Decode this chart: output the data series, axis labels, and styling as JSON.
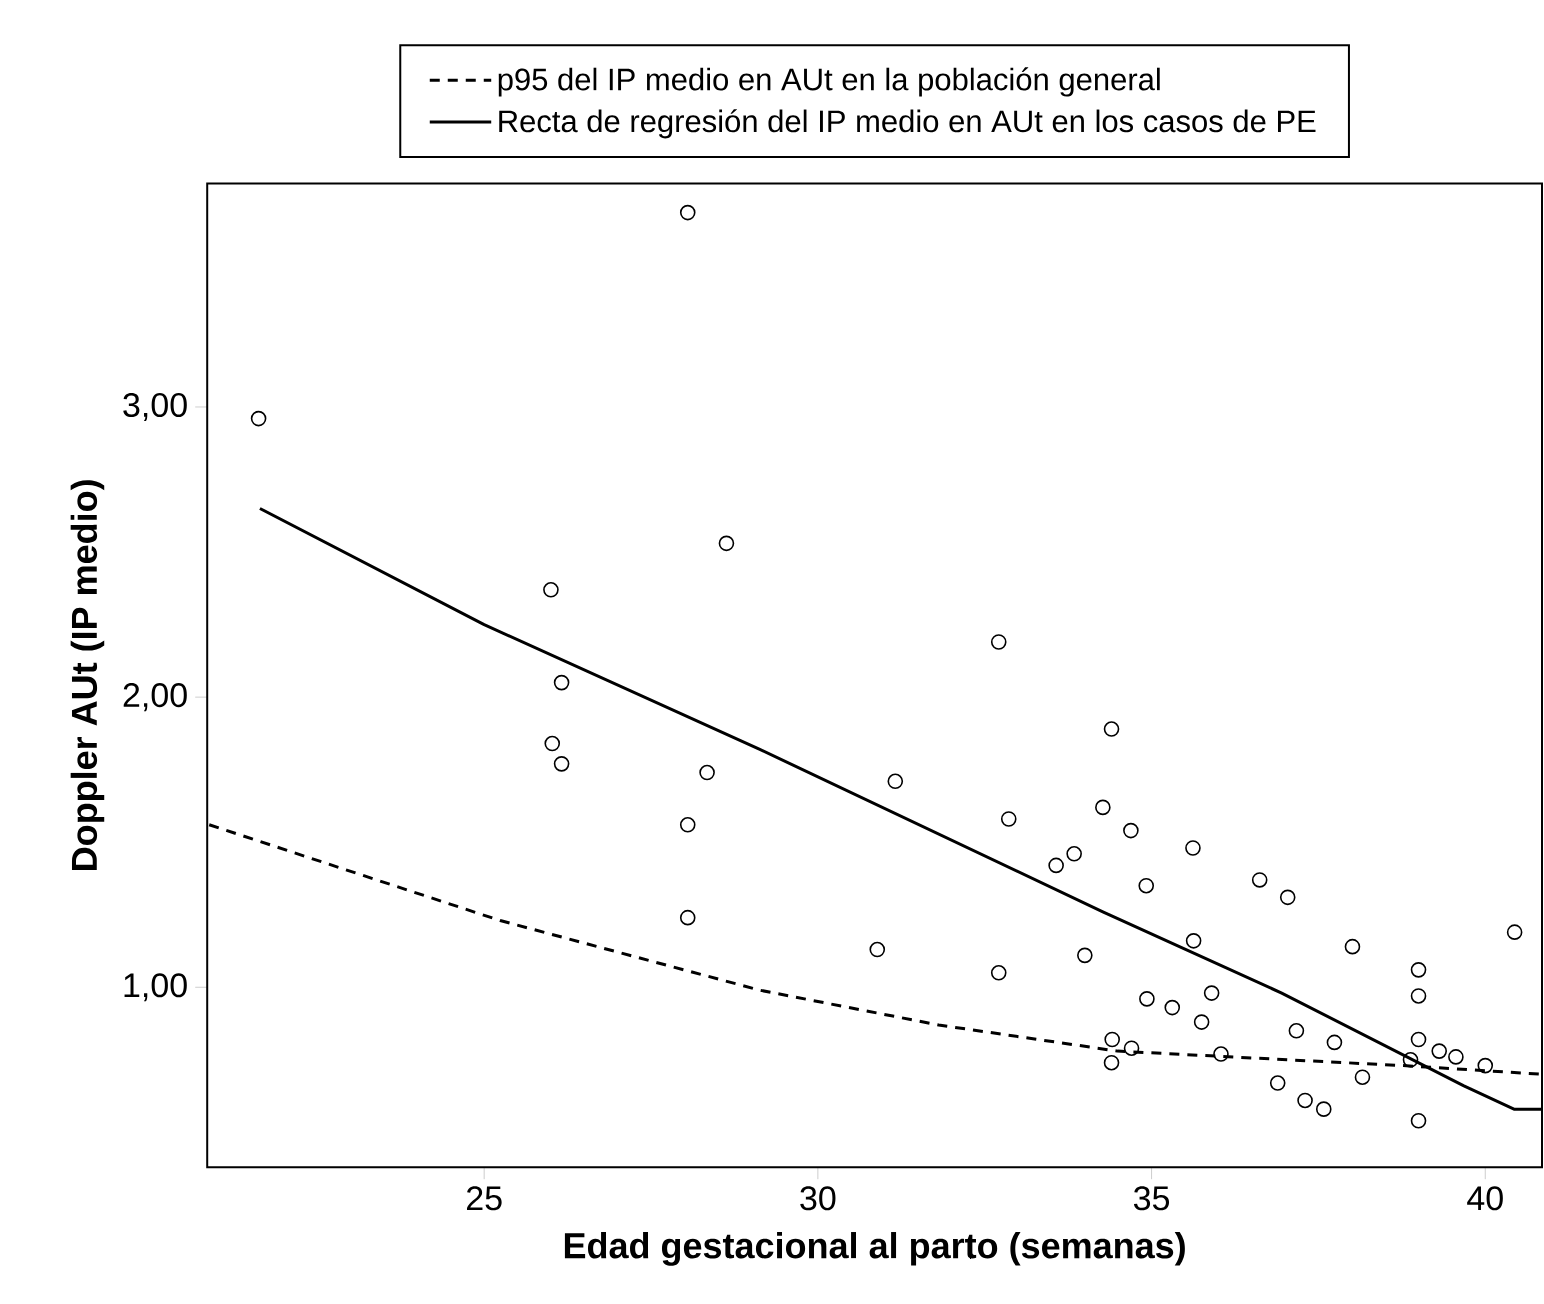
{
  "chart_data": {
    "type": "scatter",
    "xlabel": "Edad gestacional al parto (semanas)",
    "ylabel": "Doppler AUt (IP medio)",
    "xlim": [
      20.85,
      40.85
    ],
    "ylim": [
      0.38,
      3.77
    ],
    "xticks": [
      25,
      30,
      35,
      40
    ],
    "yticks": [
      {
        "value": 1,
        "label": "1,00"
      },
      {
        "value": 2,
        "label": "2,00"
      },
      {
        "value": 3,
        "label": "3,00"
      }
    ],
    "legend": "top",
    "series": [
      {
        "color": "#000000",
        "marker": "circle",
        "x": [
          21.62,
          28.05,
          28.63,
          26.0,
          26.16,
          26.02,
          26.16,
          28.34,
          28.05,
          28.05,
          32.71,
          34.4,
          31.16,
          32.86,
          34.27,
          34.69,
          33.57,
          33.84,
          35.62,
          34.92,
          36.62,
          37.04,
          35.63,
          38.01,
          40.44,
          30.89,
          34.0,
          32.71,
          39.0,
          39.0,
          35.9,
          34.93,
          35.31,
          35.75,
          37.17,
          34.41,
          34.7,
          36.04,
          37.74,
          39.0,
          39.31,
          39.56,
          38.88,
          40.0,
          34.4,
          36.89,
          38.16,
          37.3,
          37.58,
          39.0
        ],
        "values": [
          2.96,
          3.67,
          2.53,
          2.37,
          2.05,
          1.84,
          1.77,
          1.74,
          1.56,
          1.24,
          2.19,
          1.89,
          1.71,
          1.58,
          1.62,
          1.54,
          1.42,
          1.46,
          1.48,
          1.35,
          1.37,
          1.31,
          1.16,
          1.14,
          1.19,
          1.13,
          1.11,
          1.05,
          1.06,
          0.97,
          0.98,
          0.96,
          0.93,
          0.88,
          0.85,
          0.82,
          0.79,
          0.77,
          0.81,
          0.82,
          0.78,
          0.76,
          0.75,
          0.73,
          0.74,
          0.67,
          0.69,
          0.61,
          0.58,
          0.54
        ]
      },
      {
        "type": "line",
        "name": "p95 del IP medio en AUt en la población general",
        "color": "#000000",
        "line_style": "dashed",
        "x": [
          20.88,
          25.24,
          29.13,
          31.81,
          34.49,
          38.77,
          40.85
        ],
        "values": [
          1.56,
          1.23,
          0.99,
          0.87,
          0.78,
          0.73,
          0.7
        ]
      },
      {
        "type": "line",
        "name": "Recta de regresión del IP medio en AUt en los casos de PE",
        "color": "#000000",
        "line_style": "solid",
        "x": [
          21.64,
          25.0,
          29.13,
          34.27,
          36.95,
          39.68,
          40.43,
          40.85
        ],
        "values": [
          2.65,
          2.25,
          1.82,
          1.26,
          0.98,
          0.66,
          0.58,
          0.58
        ]
      }
    ]
  }
}
